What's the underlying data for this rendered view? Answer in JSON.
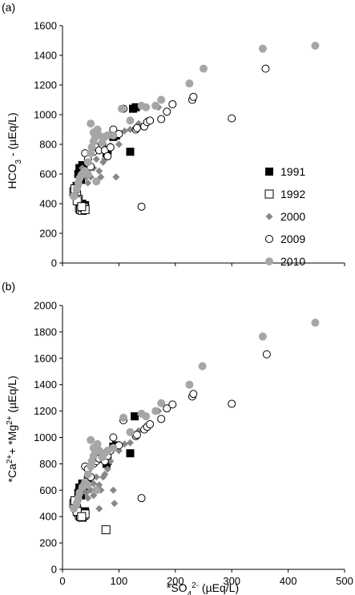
{
  "chart_data": [
    {
      "type": "scatter",
      "panel_label": "(a)",
      "ylabel": "HCO3- (µEq/L)",
      "ylim": [
        0,
        1600
      ],
      "yticks": [
        0,
        200,
        400,
        600,
        800,
        1000,
        1200,
        1400,
        1600
      ],
      "xlim": [
        0,
        500
      ],
      "legend": "right-center",
      "series": [
        {
          "name": "1991",
          "marker": "square-filled",
          "color": "#000000",
          "points": [
            [
              30,
              640
            ],
            [
              35,
              660
            ],
            [
              28,
              600
            ],
            [
              25,
              520
            ],
            [
              33,
              560
            ],
            [
              38,
              620
            ],
            [
              45,
              650
            ],
            [
              70,
              790
            ],
            [
              78,
              740
            ],
            [
              80,
              760
            ],
            [
              90,
              850
            ],
            [
              92,
              860
            ],
            [
              95,
              860
            ],
            [
              120,
              750
            ],
            [
              125,
              1040
            ],
            [
              130,
              1050
            ],
            [
              40,
              390
            ],
            [
              35,
              400
            ]
          ]
        },
        {
          "name": "1992",
          "marker": "square-open",
          "color": "#000000",
          "points": [
            [
              20,
              480
            ],
            [
              25,
              460
            ],
            [
              28,
              430
            ],
            [
              30,
              370
            ],
            [
              32,
              360
            ],
            [
              35,
              355
            ],
            [
              38,
              375
            ],
            [
              40,
              360
            ],
            [
              22,
              500
            ],
            [
              26,
              420
            ],
            [
              34,
              380
            ]
          ]
        },
        {
          "name": "2000",
          "marker": "diamond",
          "color": "#888888",
          "points": [
            [
              25,
              480
            ],
            [
              28,
              520
            ],
            [
              30,
              560
            ],
            [
              32,
              600
            ],
            [
              35,
              640
            ],
            [
              38,
              620
            ],
            [
              42,
              580
            ],
            [
              45,
              540
            ],
            [
              50,
              580
            ],
            [
              55,
              640
            ],
            [
              60,
              700
            ],
            [
              65,
              620
            ],
            [
              68,
              580
            ],
            [
              72,
              680
            ],
            [
              75,
              700
            ],
            [
              80,
              720
            ],
            [
              85,
              790
            ],
            [
              100,
              800
            ],
            [
              110,
              890
            ],
            [
              120,
              900
            ],
            [
              135,
              940
            ],
            [
              150,
              960
            ],
            [
              170,
              1050
            ],
            [
              95,
              580
            ]
          ]
        },
        {
          "name": "2009",
          "marker": "circle-open",
          "color": "#000000",
          "points": [
            [
              40,
              740
            ],
            [
              45,
              700
            ],
            [
              50,
              650
            ],
            [
              55,
              750
            ],
            [
              60,
              780
            ],
            [
              65,
              760
            ],
            [
              70,
              800
            ],
            [
              75,
              760
            ],
            [
              80,
              720
            ],
            [
              85,
              780
            ],
            [
              90,
              900
            ],
            [
              100,
              870
            ],
            [
              108,
              1040
            ],
            [
              130,
              900
            ],
            [
              132,
              910
            ],
            [
              145,
              920
            ],
            [
              150,
              950
            ],
            [
              155,
              960
            ],
            [
              175,
              970
            ],
            [
              185,
              1020
            ],
            [
              195,
              1070
            ],
            [
              230,
              1100
            ],
            [
              232,
              1120
            ],
            [
              300,
              975
            ],
            [
              360,
              1310
            ],
            [
              140,
              380
            ]
          ]
        },
        {
          "name": "2010",
          "marker": "circle-filled",
          "color": "#a6a6a6",
          "points": [
            [
              20,
              450
            ],
            [
              25,
              500
            ],
            [
              28,
              540
            ],
            [
              30,
              570
            ],
            [
              35,
              600
            ],
            [
              40,
              620
            ],
            [
              45,
              680
            ],
            [
              50,
              740
            ],
            [
              52,
              780
            ],
            [
              55,
              820
            ],
            [
              58,
              850
            ],
            [
              60,
              880
            ],
            [
              62,
              900
            ],
            [
              65,
              860
            ],
            [
              70,
              810
            ],
            [
              50,
              940
            ],
            [
              55,
              880
            ],
            [
              75,
              850
            ],
            [
              80,
              860
            ],
            [
              90,
              860
            ],
            [
              105,
              1040
            ],
            [
              120,
              960
            ],
            [
              140,
              1060
            ],
            [
              148,
              1050
            ],
            [
              165,
              1060
            ],
            [
              175,
              1100
            ],
            [
              225,
              1210
            ],
            [
              250,
              1310
            ],
            [
              355,
              1445
            ],
            [
              448,
              1465
            ],
            [
              60,
              550
            ],
            [
              45,
              600
            ]
          ]
        }
      ]
    },
    {
      "type": "scatter",
      "panel_label": "(b)",
      "ylabel": "*Ca2+ + *Mg2+ (µEq/L)",
      "xlabel": "*SO42- (µEq/L)",
      "ylim": [
        0,
        2000
      ],
      "yticks": [
        0,
        200,
        400,
        600,
        800,
        1000,
        1200,
        1400,
        1600,
        1800,
        2000
      ],
      "xlim": [
        0,
        500
      ],
      "xticks": [
        0,
        100,
        200,
        300,
        400,
        500
      ],
      "series": [
        {
          "name": "1991",
          "marker": "square-filled",
          "color": "#000000",
          "points": [
            [
              30,
              620
            ],
            [
              35,
              650
            ],
            [
              28,
              580
            ],
            [
              25,
              520
            ],
            [
              33,
              560
            ],
            [
              38,
              600
            ],
            [
              45,
              680
            ],
            [
              70,
              840
            ],
            [
              78,
              800
            ],
            [
              80,
              820
            ],
            [
              90,
              930
            ],
            [
              95,
              940
            ],
            [
              120,
              880
            ],
            [
              128,
              1160
            ],
            [
              40,
              440
            ],
            [
              35,
              420
            ]
          ]
        },
        {
          "name": "1992",
          "marker": "square-open",
          "color": "#000000",
          "points": [
            [
              20,
              500
            ],
            [
              25,
              460
            ],
            [
              28,
              430
            ],
            [
              30,
              410
            ],
            [
              32,
              400
            ],
            [
              35,
              395
            ],
            [
              38,
              410
            ],
            [
              40,
              420
            ],
            [
              22,
              520
            ],
            [
              26,
              440
            ],
            [
              34,
              400
            ],
            [
              77,
              300
            ]
          ]
        },
        {
          "name": "2000",
          "marker": "diamond",
          "color": "#888888",
          "points": [
            [
              25,
              480
            ],
            [
              28,
              520
            ],
            [
              30,
              560
            ],
            [
              32,
              600
            ],
            [
              35,
              640
            ],
            [
              38,
              620
            ],
            [
              42,
              580
            ],
            [
              45,
              540
            ],
            [
              50,
              600
            ],
            [
              55,
              650
            ],
            [
              60,
              700
            ],
            [
              65,
              640
            ],
            [
              68,
              600
            ],
            [
              72,
              700
            ],
            [
              75,
              720
            ],
            [
              80,
              760
            ],
            [
              85,
              820
            ],
            [
              100,
              900
            ],
            [
              110,
              950
            ],
            [
              120,
              960
            ],
            [
              135,
              1050
            ],
            [
              150,
              1080
            ],
            [
              170,
              1200
            ],
            [
              90,
              600
            ],
            [
              92,
              500
            ],
            [
              65,
              460
            ],
            [
              55,
              560
            ]
          ]
        },
        {
          "name": "2009",
          "marker": "circle-open",
          "color": "#000000",
          "points": [
            [
              40,
              780
            ],
            [
              45,
              760
            ],
            [
              50,
              700
            ],
            [
              55,
              800
            ],
            [
              60,
              820
            ],
            [
              65,
              840
            ],
            [
              70,
              880
            ],
            [
              75,
              820
            ],
            [
              80,
              860
            ],
            [
              85,
              900
            ],
            [
              90,
              1000
            ],
            [
              100,
              940
            ],
            [
              108,
              1130
            ],
            [
              130,
              1010
            ],
            [
              132,
              1020
            ],
            [
              145,
              1060
            ],
            [
              150,
              1080
            ],
            [
              155,
              1100
            ],
            [
              175,
              1140
            ],
            [
              185,
              1220
            ],
            [
              195,
              1250
            ],
            [
              230,
              1310
            ],
            [
              232,
              1330
            ],
            [
              300,
              1255
            ],
            [
              362,
              1630
            ],
            [
              140,
              540
            ]
          ]
        },
        {
          "name": "2010",
          "marker": "circle-filled",
          "color": "#a6a6a6",
          "points": [
            [
              20,
              460
            ],
            [
              25,
              500
            ],
            [
              28,
              540
            ],
            [
              30,
              580
            ],
            [
              35,
              620
            ],
            [
              40,
              660
            ],
            [
              45,
              720
            ],
            [
              50,
              780
            ],
            [
              52,
              820
            ],
            [
              55,
              860
            ],
            [
              58,
              900
            ],
            [
              60,
              930
            ],
            [
              62,
              950
            ],
            [
              65,
              900
            ],
            [
              70,
              850
            ],
            [
              50,
              980
            ],
            [
              55,
              920
            ],
            [
              75,
              880
            ],
            [
              80,
              900
            ],
            [
              90,
              920
            ],
            [
              108,
              1150
            ],
            [
              120,
              1040
            ],
            [
              140,
              1180
            ],
            [
              148,
              1160
            ],
            [
              165,
              1200
            ],
            [
              175,
              1260
            ],
            [
              225,
              1400
            ],
            [
              248,
              1540
            ],
            [
              355,
              1765
            ],
            [
              448,
              1870
            ],
            [
              60,
              600
            ],
            [
              45,
              640
            ]
          ]
        }
      ]
    }
  ]
}
